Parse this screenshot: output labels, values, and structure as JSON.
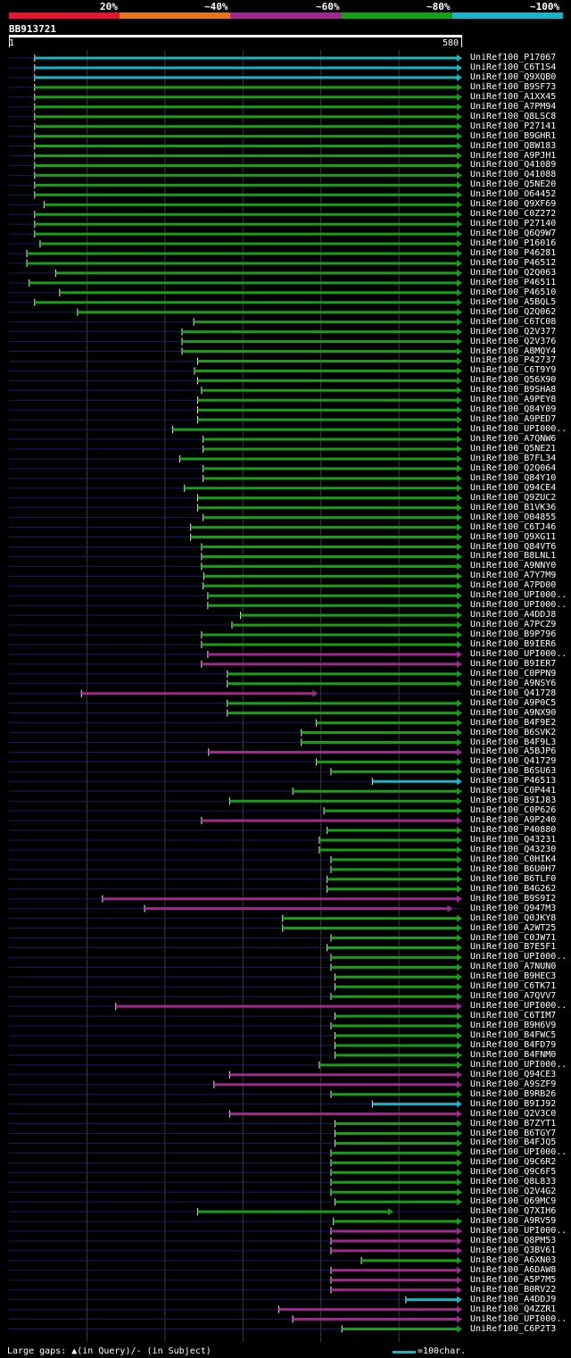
{
  "query": {
    "name": "BB913721",
    "start_label": "1",
    "end_label": "580",
    "length": 580
  },
  "legend": {
    "labels": [
      "20%",
      "~40%",
      "~60%",
      "~80%",
      "~100%"
    ],
    "colors": [
      "#e3162d",
      "#e8761e",
      "#9e2a8e",
      "#199e19",
      "#19b5c4"
    ]
  },
  "footer": {
    "left": "Large gaps: ▲(in Query)/- (in Subject)",
    "right": "=100char."
  },
  "colors": {
    "cyan": "#19b5c4",
    "green": "#199e19",
    "magenta": "#9e2a8e"
  },
  "hits": [
    {
      "name": "UniRef100_P17067",
      "start": 33,
      "end": 580,
      "color": "cyan"
    },
    {
      "name": "UniRef100_C6T1S4",
      "start": 33,
      "end": 580,
      "color": "cyan"
    },
    {
      "name": "UniRef100_Q9XQB0",
      "start": 33,
      "end": 580,
      "color": "cyan"
    },
    {
      "name": "UniRef100_B9SF73",
      "start": 33,
      "end": 580,
      "color": "green"
    },
    {
      "name": "UniRef100_A1XX45",
      "start": 33,
      "end": 580,
      "color": "green"
    },
    {
      "name": "UniRef100_A7PM94",
      "start": 33,
      "end": 580,
      "color": "green"
    },
    {
      "name": "UniRef100_Q8LSC8",
      "start": 33,
      "end": 580,
      "color": "green"
    },
    {
      "name": "UniRef100_P27141",
      "start": 33,
      "end": 580,
      "color": "green"
    },
    {
      "name": "UniRef100_B9GHR1",
      "start": 33,
      "end": 580,
      "color": "green"
    },
    {
      "name": "UniRef100_Q8W183",
      "start": 33,
      "end": 580,
      "color": "green"
    },
    {
      "name": "UniRef100_A9PJH1",
      "start": 33,
      "end": 580,
      "color": "green"
    },
    {
      "name": "UniRef100_Q41089",
      "start": 33,
      "end": 580,
      "color": "green"
    },
    {
      "name": "UniRef100_Q41088",
      "start": 33,
      "end": 580,
      "color": "green"
    },
    {
      "name": "UniRef100_Q5NE20",
      "start": 33,
      "end": 580,
      "color": "green"
    },
    {
      "name": "UniRef100_O64452",
      "start": 33,
      "end": 580,
      "color": "green"
    },
    {
      "name": "UniRef100_Q9XF69",
      "start": 45,
      "end": 580,
      "color": "green"
    },
    {
      "name": "UniRef100_C0Z272",
      "start": 33,
      "end": 580,
      "color": "green"
    },
    {
      "name": "UniRef100_P27140",
      "start": 33,
      "end": 580,
      "color": "green"
    },
    {
      "name": "UniRef100_Q6Q9W7",
      "start": 33,
      "end": 580,
      "color": "green"
    },
    {
      "name": "UniRef100_P16016",
      "start": 40,
      "end": 580,
      "color": "green"
    },
    {
      "name": "UniRef100_P46281",
      "start": 23,
      "end": 580,
      "color": "green"
    },
    {
      "name": "UniRef100_P46512",
      "start": 23,
      "end": 580,
      "color": "green"
    },
    {
      "name": "UniRef100_Q2Q063",
      "start": 60,
      "end": 580,
      "color": "green"
    },
    {
      "name": "UniRef100_P46511",
      "start": 26,
      "end": 580,
      "color": "green"
    },
    {
      "name": "UniRef100_P46510",
      "start": 65,
      "end": 580,
      "color": "green"
    },
    {
      "name": "UniRef100_A5BQL5",
      "start": 33,
      "end": 580,
      "color": "green"
    },
    {
      "name": "UniRef100_Q2Q062",
      "start": 88,
      "end": 580,
      "color": "green"
    },
    {
      "name": "UniRef100_C6TC08",
      "start": 237,
      "end": 580,
      "color": "green"
    },
    {
      "name": "UniRef100_Q2V377",
      "start": 222,
      "end": 580,
      "color": "green"
    },
    {
      "name": "UniRef100_Q2V376",
      "start": 222,
      "end": 580,
      "color": "green"
    },
    {
      "name": "UniRef100_A8MQY4",
      "start": 222,
      "end": 580,
      "color": "green"
    },
    {
      "name": "UniRef100_P42737",
      "start": 242,
      "end": 580,
      "color": "green"
    },
    {
      "name": "UniRef100_C6T9Y9",
      "start": 238,
      "end": 580,
      "color": "green"
    },
    {
      "name": "UniRef100_Q56X90",
      "start": 242,
      "end": 580,
      "color": "green"
    },
    {
      "name": "UniRef100_B9SHA8",
      "start": 247,
      "end": 580,
      "color": "green"
    },
    {
      "name": "UniRef100_A9PEY8",
      "start": 242,
      "end": 580,
      "color": "green"
    },
    {
      "name": "UniRef100_Q84Y09",
      "start": 242,
      "end": 580,
      "color": "green"
    },
    {
      "name": "UniRef100_A9PED7",
      "start": 242,
      "end": 580,
      "color": "green"
    },
    {
      "name": "UniRef100_UPI000..",
      "start": 210,
      "end": 580,
      "color": "green"
    },
    {
      "name": "UniRef100_A7QNW6",
      "start": 249,
      "end": 580,
      "color": "green"
    },
    {
      "name": "UniRef100_Q5NE21",
      "start": 249,
      "end": 580,
      "color": "green"
    },
    {
      "name": "UniRef100_B7FL34",
      "start": 219,
      "end": 580,
      "color": "green"
    },
    {
      "name": "UniRef100_Q2Q064",
      "start": 249,
      "end": 580,
      "color": "green"
    },
    {
      "name": "UniRef100_Q84Y10",
      "start": 249,
      "end": 580,
      "color": "green"
    },
    {
      "name": "UniRef100_Q94CE4",
      "start": 225,
      "end": 580,
      "color": "green"
    },
    {
      "name": "UniRef100_Q9ZUC2",
      "start": 242,
      "end": 580,
      "color": "green"
    },
    {
      "name": "UniRef100_B1VK36",
      "start": 242,
      "end": 580,
      "color": "green"
    },
    {
      "name": "UniRef100_O04855",
      "start": 249,
      "end": 580,
      "color": "green"
    },
    {
      "name": "UniRef100_C6TJ46",
      "start": 233,
      "end": 580,
      "color": "green"
    },
    {
      "name": "UniRef100_Q9XG11",
      "start": 233,
      "end": 580,
      "color": "green"
    },
    {
      "name": "UniRef100_Q84VT6",
      "start": 247,
      "end": 580,
      "color": "green"
    },
    {
      "name": "UniRef100_B8LNL1",
      "start": 247,
      "end": 580,
      "color": "green"
    },
    {
      "name": "UniRef100_A9NNY0",
      "start": 247,
      "end": 580,
      "color": "green"
    },
    {
      "name": "UniRef100_A7Y7M9",
      "start": 250,
      "end": 580,
      "color": "green"
    },
    {
      "name": "UniRef100_A7PD00",
      "start": 249,
      "end": 580,
      "color": "green"
    },
    {
      "name": "UniRef100_UPI000..",
      "start": 255,
      "end": 580,
      "color": "green"
    },
    {
      "name": "UniRef100_UPI000..",
      "start": 255,
      "end": 580,
      "color": "green"
    },
    {
      "name": "UniRef100_A4DDJ8",
      "start": 297,
      "end": 580,
      "color": "green"
    },
    {
      "name": "UniRef100_A7PCZ9",
      "start": 286,
      "end": 580,
      "color": "green"
    },
    {
      "name": "UniRef100_B9P796",
      "start": 247,
      "end": 580,
      "color": "green"
    },
    {
      "name": "UniRef100_B9IER6",
      "start": 247,
      "end": 580,
      "color": "green"
    },
    {
      "name": "UniRef100_UPI000..",
      "start": 255,
      "end": 580,
      "color": "magenta"
    },
    {
      "name": "UniRef100_B9IER7",
      "start": 247,
      "end": 580,
      "color": "magenta"
    },
    {
      "name": "UniRef100_C0PPN9",
      "start": 280,
      "end": 580,
      "color": "green"
    },
    {
      "name": "UniRef100_A9NSY6",
      "start": 280,
      "end": 580,
      "color": "green"
    },
    {
      "name": "UniRef100_Q41728",
      "start": 93,
      "end": 395,
      "color": "magenta"
    },
    {
      "name": "UniRef100_A9P0C5",
      "start": 280,
      "end": 580,
      "color": "green"
    },
    {
      "name": "UniRef100_A9NX90",
      "start": 280,
      "end": 580,
      "color": "green"
    },
    {
      "name": "UniRef100_B4F9E2",
      "start": 394,
      "end": 580,
      "color": "green"
    },
    {
      "name": "UniRef100_B6SVK2",
      "start": 375,
      "end": 580,
      "color": "green"
    },
    {
      "name": "UniRef100_B4F9L3",
      "start": 375,
      "end": 580,
      "color": "green"
    },
    {
      "name": "UniRef100_A5BJP6",
      "start": 256,
      "end": 580,
      "color": "magenta"
    },
    {
      "name": "UniRef100_Q41729",
      "start": 394,
      "end": 580,
      "color": "green"
    },
    {
      "name": "UniRef100_B6SU63",
      "start": 413,
      "end": 580,
      "color": "green"
    },
    {
      "name": "UniRef100_P46513",
      "start": 466,
      "end": 580,
      "color": "cyan"
    },
    {
      "name": "UniRef100_C0P441",
      "start": 364,
      "end": 580,
      "color": "green"
    },
    {
      "name": "UniRef100_B9IJ83",
      "start": 283,
      "end": 580,
      "color": "green"
    },
    {
      "name": "UniRef100_C0P626",
      "start": 404,
      "end": 580,
      "color": "green"
    },
    {
      "name": "UniRef100_A9P240",
      "start": 247,
      "end": 580,
      "color": "magenta"
    },
    {
      "name": "UniRef100_P40880",
      "start": 408,
      "end": 580,
      "color": "green"
    },
    {
      "name": "UniRef100_Q43231",
      "start": 398,
      "end": 580,
      "color": "green"
    },
    {
      "name": "UniRef100_Q43230",
      "start": 398,
      "end": 580,
      "color": "green"
    },
    {
      "name": "UniRef100_C0HIK4",
      "start": 413,
      "end": 580,
      "color": "green"
    },
    {
      "name": "UniRef100_B6U0H7",
      "start": 413,
      "end": 580,
      "color": "green"
    },
    {
      "name": "UniRef100_B6TLF0",
      "start": 408,
      "end": 580,
      "color": "green"
    },
    {
      "name": "UniRef100_B4G262",
      "start": 408,
      "end": 580,
      "color": "green"
    },
    {
      "name": "UniRef100_B9S9I2",
      "start": 120,
      "end": 580,
      "color": "magenta"
    },
    {
      "name": "UniRef100_Q947M3",
      "start": 174,
      "end": 568,
      "color": "magenta"
    },
    {
      "name": "UniRef100_Q0JKY8",
      "start": 351,
      "end": 580,
      "color": "green"
    },
    {
      "name": "UniRef100_A2WT25",
      "start": 351,
      "end": 580,
      "color": "green"
    },
    {
      "name": "UniRef100_C0JW71",
      "start": 413,
      "end": 580,
      "color": "green"
    },
    {
      "name": "UniRef100_B7E5F1",
      "start": 408,
      "end": 580,
      "color": "green"
    },
    {
      "name": "UniRef100_UPI000..",
      "start": 413,
      "end": 580,
      "color": "green"
    },
    {
      "name": "UniRef100_A7NUN0",
      "start": 413,
      "end": 580,
      "color": "green"
    },
    {
      "name": "UniRef100_B9HEC3",
      "start": 418,
      "end": 580,
      "color": "green"
    },
    {
      "name": "UniRef100_C6TK71",
      "start": 418,
      "end": 580,
      "color": "green"
    },
    {
      "name": "UniRef100_A7QVV7",
      "start": 413,
      "end": 580,
      "color": "green"
    },
    {
      "name": "UniRef100_UPI000..",
      "start": 137,
      "end": 580,
      "color": "magenta"
    },
    {
      "name": "UniRef100_C6TIM7",
      "start": 418,
      "end": 580,
      "color": "green"
    },
    {
      "name": "UniRef100_B9H6V9",
      "start": 413,
      "end": 580,
      "color": "green"
    },
    {
      "name": "UniRef100_B4FWC5",
      "start": 418,
      "end": 580,
      "color": "green"
    },
    {
      "name": "UniRef100_B4FD79",
      "start": 418,
      "end": 580,
      "color": "green"
    },
    {
      "name": "UniRef100_B4FNM0",
      "start": 418,
      "end": 580,
      "color": "green"
    },
    {
      "name": "UniRef100_UPI000..",
      "start": 398,
      "end": 580,
      "color": "green"
    },
    {
      "name": "UniRef100_Q94CE3",
      "start": 283,
      "end": 580,
      "color": "magenta"
    },
    {
      "name": "UniRef100_A9SZF9",
      "start": 263,
      "end": 580,
      "color": "magenta"
    },
    {
      "name": "UniRef100_B9RB26",
      "start": 413,
      "end": 580,
      "color": "green"
    },
    {
      "name": "UniRef100_B9IJ92",
      "start": 466,
      "end": 580,
      "color": "cyan"
    },
    {
      "name": "UniRef100_Q2V3C0",
      "start": 283,
      "end": 580,
      "color": "magenta"
    },
    {
      "name": "UniRef100_B7ZYT1",
      "start": 418,
      "end": 580,
      "color": "green"
    },
    {
      "name": "UniRef100_B6TGY7",
      "start": 418,
      "end": 580,
      "color": "green"
    },
    {
      "name": "UniRef100_B4FJQ5",
      "start": 418,
      "end": 580,
      "color": "green"
    },
    {
      "name": "UniRef100_UPI000..",
      "start": 413,
      "end": 580,
      "color": "green"
    },
    {
      "name": "UniRef100_Q9C6R2",
      "start": 413,
      "end": 580,
      "color": "green"
    },
    {
      "name": "UniRef100_Q9C6F5",
      "start": 413,
      "end": 580,
      "color": "green"
    },
    {
      "name": "UniRef100_Q8L833",
      "start": 413,
      "end": 580,
      "color": "green"
    },
    {
      "name": "UniRef100_Q2V4G2",
      "start": 413,
      "end": 580,
      "color": "green"
    },
    {
      "name": "UniRef100_Q69MC9",
      "start": 418,
      "end": 580,
      "color": "green"
    },
    {
      "name": "UniRef100_Q7XIH6",
      "start": 242,
      "end": 492,
      "color": "green"
    },
    {
      "name": "UniRef100_A9RV59",
      "start": 416,
      "end": 580,
      "color": "green"
    },
    {
      "name": "UniRef100_UPI000..",
      "start": 413,
      "end": 580,
      "color": "magenta"
    },
    {
      "name": "UniRef100_Q8PM53",
      "start": 413,
      "end": 580,
      "color": "magenta"
    },
    {
      "name": "UniRef100_Q3BV61",
      "start": 413,
      "end": 580,
      "color": "magenta"
    },
    {
      "name": "UniRef100_A6XN03",
      "start": 452,
      "end": 580,
      "color": "green"
    },
    {
      "name": "UniRef100_A6DAW8",
      "start": 413,
      "end": 580,
      "color": "magenta"
    },
    {
      "name": "UniRef100_A5P7M5",
      "start": 413,
      "end": 580,
      "color": "magenta"
    },
    {
      "name": "UniRef100_B0RV22",
      "start": 413,
      "end": 580,
      "color": "magenta"
    },
    {
      "name": "UniRef100_A4DDJ9",
      "start": 509,
      "end": 580,
      "color": "cyan"
    },
    {
      "name": "UniRef100_Q4ZZR1",
      "start": 346,
      "end": 580,
      "color": "magenta"
    },
    {
      "name": "UniRef100_UPI000..",
      "start": 364,
      "end": 580,
      "color": "magenta"
    },
    {
      "name": "UniRef100_C6P2T3",
      "start": 427,
      "end": 580,
      "color": "green"
    }
  ]
}
